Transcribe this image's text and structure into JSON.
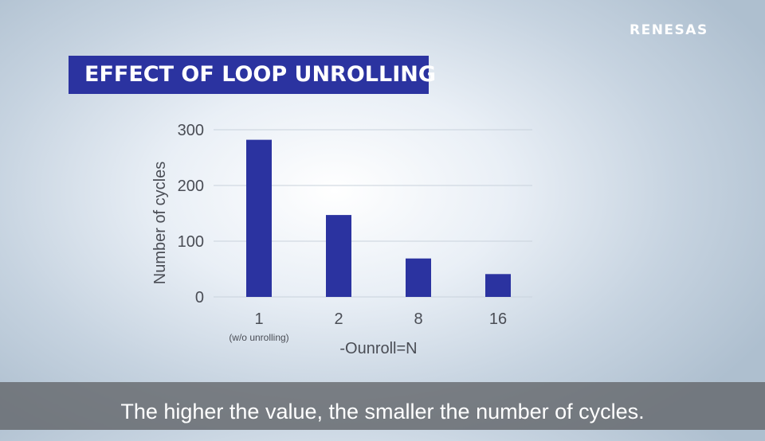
{
  "logo": {
    "text": "RENESAS"
  },
  "title": "EFFECT OF LOOP UNROLLING",
  "caption": "The higher the value, the smaller the number of cycles.",
  "colors": {
    "bar": "#2b33a0",
    "title_bg": "#2b33a0",
    "grid": "#c9d2dc"
  },
  "chart_data": {
    "type": "bar",
    "title": "EFFECT OF LOOP UNROLLING",
    "categories": [
      "1",
      "2",
      "8",
      "16"
    ],
    "category_sublabels": [
      "(w/o unrolling)",
      "",
      "",
      ""
    ],
    "values": [
      282,
      147,
      69,
      41
    ],
    "xlabel": "-Ounroll=N",
    "ylabel": "Number of cycles",
    "ylim": [
      0,
      300
    ],
    "yticks": [
      0,
      100,
      200,
      300
    ],
    "grid": true,
    "legend": "none"
  }
}
